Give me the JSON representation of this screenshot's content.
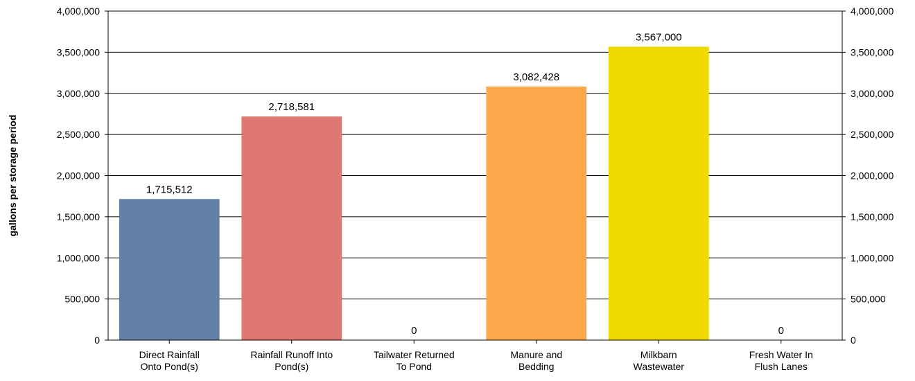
{
  "chart_data": {
    "type": "bar",
    "ylabel": "gallons per storage period",
    "ylim": [
      0,
      4000000
    ],
    "y_ticks": [
      "0",
      "500,000",
      "1,000,000",
      "1,500,000",
      "2,000,000",
      "2,500,000",
      "3,000,000",
      "3,500,000",
      "4,000,000"
    ],
    "grid": true,
    "secondary_axis": true,
    "categories": [
      [
        "Direct Rainfall",
        "Onto Pond(s)"
      ],
      [
        "Rainfall Runoff Into",
        "Pond(s)"
      ],
      [
        "Tailwater Returned",
        "To Pond"
      ],
      [
        "Manure and",
        "Bedding"
      ],
      [
        "Milkbarn",
        "Wastewater"
      ],
      [
        "Fresh Water In",
        "Flush Lanes"
      ]
    ],
    "values": [
      1715512,
      2718581,
      0,
      3082428,
      3567000,
      0
    ],
    "data_labels": [
      "1,715,512",
      "2,718,581",
      "0",
      "3,082,428",
      "3,567,000",
      "0"
    ],
    "colors": [
      "#6480a6",
      "#df7873",
      "#b5cf6f",
      "#fda84a",
      "#eed900",
      "#7fb4d8"
    ]
  }
}
